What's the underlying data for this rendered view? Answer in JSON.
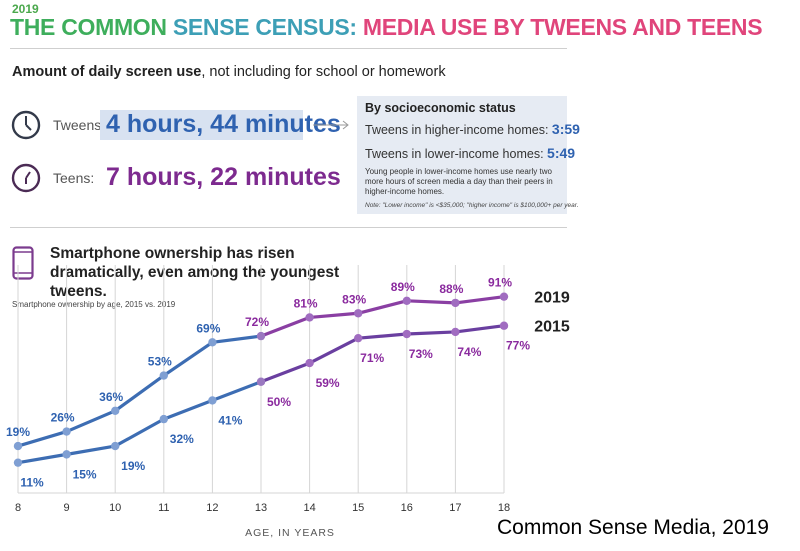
{
  "header": {
    "year": "2019",
    "title_part1": "THE COMMON ",
    "title_part2": "SENSE CENSUS: ",
    "title_part3": "MEDIA USE BY TWEENS AND TEENS"
  },
  "daily_use": {
    "heading_bold": "Amount of daily screen use",
    "heading_rest": ", not including for school or homework",
    "tweens_label": "Tweens:",
    "tweens_value": "4 hours, 44 minutes",
    "teens_label": "Teens:",
    "teens_value": "7 hours, 22 minutes"
  },
  "ses": {
    "title": "By socioeconomic status",
    "higher_label": "Tweens in higher-income homes: ",
    "higher_value": "3:59",
    "lower_label": "Tweens in lower-income homes: ",
    "lower_value": "5:49",
    "note": "Young people in lower-income homes use nearly two more hours of screen media a day than their peers in higher-income homes.",
    "footnote": "Note: \"Lower income\" is <$35,000; \"higher income\" is $100,000+ per year."
  },
  "phone_section": {
    "heading": "Smartphone ownership has risen dramatically, even among the youngest tweens.",
    "subtitle": "Smartphone ownership by age, 2015 vs. 2019"
  },
  "chart_data": {
    "type": "line",
    "x": [
      8,
      9,
      10,
      11,
      12,
      13,
      14,
      15,
      16,
      17,
      18
    ],
    "xlabel": "AGE, IN YEARS",
    "ylabel": "",
    "ylim": [
      0,
      100
    ],
    "grid": "vertical",
    "legend": "right",
    "series": [
      {
        "name": "2019",
        "values": [
          19,
          26,
          36,
          53,
          69,
          72,
          81,
          83,
          89,
          88,
          91
        ],
        "color": "#3d6db3",
        "color_late": "#8a3fa3"
      },
      {
        "name": "2015",
        "values": [
          11,
          15,
          19,
          32,
          41,
          50,
          59,
          71,
          73,
          74,
          77
        ],
        "color": "#3d6db3",
        "color_late": "#6a3fa0"
      }
    ],
    "label_colors": {
      "early": "#2f62b0",
      "late": "#8a2a9e"
    }
  },
  "credit": "Common Sense Media, 2019"
}
